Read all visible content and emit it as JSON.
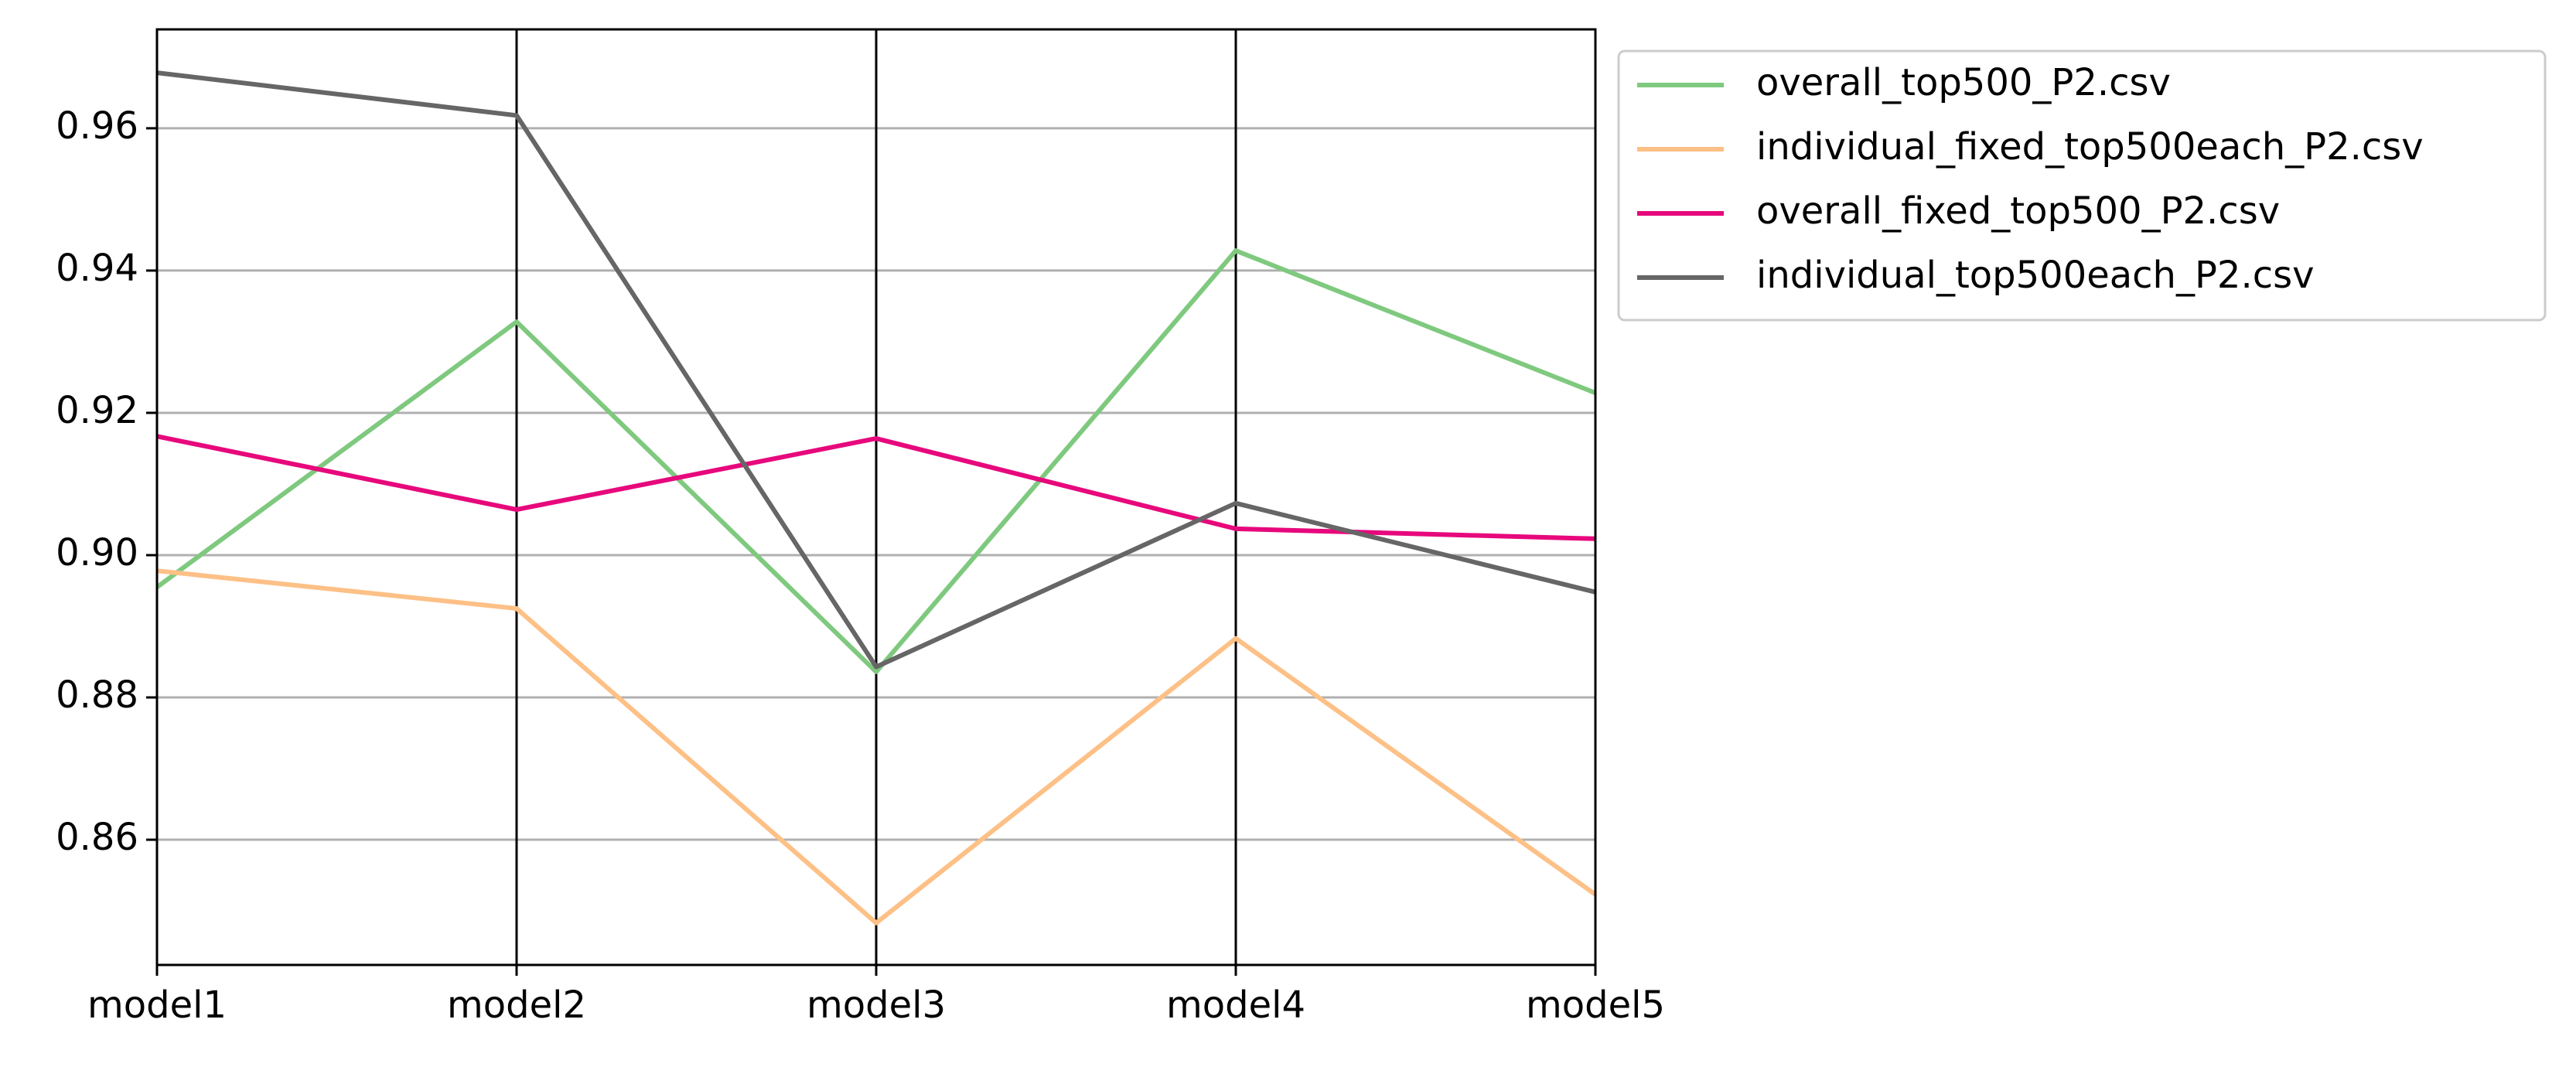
{
  "chart_data": {
    "type": "line",
    "plot_kind": "parallel-coordinates",
    "categories": [
      "model1",
      "model2",
      "model3",
      "model4",
      "model5"
    ],
    "series": [
      {
        "name": "overall_top500_P2.csv",
        "color": "#7fc97f",
        "values": [
          0.8955,
          0.9328,
          0.8836,
          0.9428,
          0.9228
        ]
      },
      {
        "name": "individual_fixed_top500each_P2.csv",
        "color": "#fdc086",
        "values": [
          0.8978,
          0.8925,
          0.8483,
          0.8883,
          0.8523
        ]
      },
      {
        "name": "overall_fixed_top500_P2.csv",
        "color": "#e7087c",
        "values": [
          0.9167,
          0.9064,
          0.9164,
          0.9037,
          0.9023
        ]
      },
      {
        "name": "individual_top500each_P2.csv",
        "color": "#666666",
        "values": [
          0.9678,
          0.9618,
          0.8843,
          0.9073,
          0.8948
        ]
      }
    ],
    "yticks": [
      "0.86",
      "0.88",
      "0.90",
      "0.92",
      "0.94",
      "0.96"
    ],
    "ylim": [
      0.8424,
      0.9739
    ],
    "title": "",
    "xlabel": "",
    "ylabel": "",
    "grid": "horizontal",
    "legend": "upper-right-outside"
  }
}
